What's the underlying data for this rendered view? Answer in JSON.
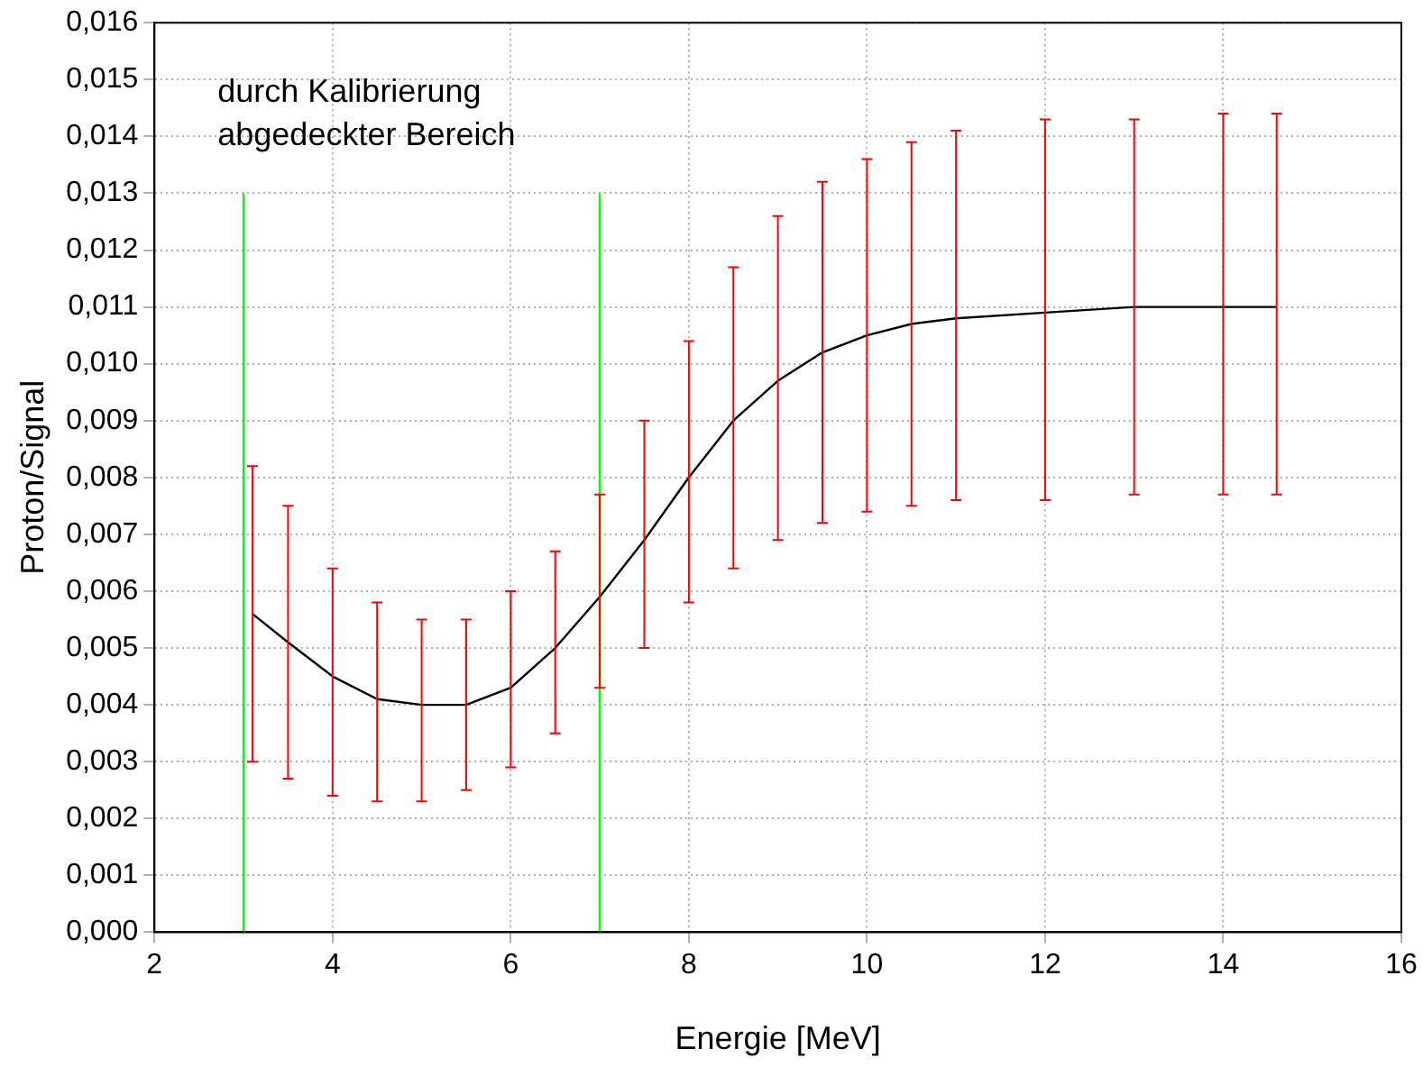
{
  "chart_data": {
    "type": "line",
    "xlabel": "Energie [MeV]",
    "ylabel": "Proton/Signal",
    "annotations": [
      "durch Kalibrierung\nabgedeckter Bereich"
    ],
    "xlim": [
      2,
      16
    ],
    "xticks": [
      2,
      4,
      6,
      8,
      10,
      12,
      14,
      16
    ],
    "ylim": [
      0,
      0.016
    ],
    "yticks": [
      {
        "value": 0,
        "label": "0,000"
      },
      {
        "value": 0.001,
        "label": "0,001"
      },
      {
        "value": 0.002,
        "label": "0,002"
      },
      {
        "value": 0.003,
        "label": "0,003"
      },
      {
        "value": 0.004,
        "label": "0,004"
      },
      {
        "value": 0.005,
        "label": "0,005"
      },
      {
        "value": 0.006,
        "label": "0,006"
      },
      {
        "value": 0.007,
        "label": "0,007"
      },
      {
        "value": 0.008,
        "label": "0,008"
      },
      {
        "value": 0.009,
        "label": "0,009"
      },
      {
        "value": 0.01,
        "label": "0,010"
      },
      {
        "value": 0.011,
        "label": "0,011"
      },
      {
        "value": 0.012,
        "label": "0,012"
      },
      {
        "value": 0.013,
        "label": "0,013"
      },
      {
        "value": 0.014,
        "label": "0,014"
      },
      {
        "value": 0.015,
        "label": "0,015"
      },
      {
        "value": 0.016,
        "label": "0,016"
      }
    ],
    "grid": true,
    "legend": false,
    "marker": "none",
    "line_style": "solid",
    "series": [
      {
        "color": "#000000",
        "x": [
          3.1,
          3.5,
          4,
          4.5,
          5,
          5.5,
          6,
          6.5,
          7,
          7.5,
          8,
          8.5,
          9,
          9.5,
          10,
          10.5,
          11,
          12,
          13,
          14,
          14.6
        ],
        "colors": [
          "#ff0000",
          "#ff0000",
          "#ff0000",
          "#ff0000",
          "#ff0000",
          "#ff0000",
          "#ff0000",
          "#ff0000",
          "#ff0000",
          "#ff0000",
          "#ff0000",
          "#ff0000",
          "#ff0000",
          "#ff0000",
          "#ff0000",
          "#ff0000",
          "#ff0000",
          "#ff0000",
          "#ff0000",
          "#ff0000",
          "#ff0000"
        ],
        "values": [
          0.0056,
          0.0051,
          0.0045,
          0.0041,
          0.004,
          0.004,
          0.0043,
          0.005,
          0.0059,
          0.0069,
          0.008,
          0.009,
          0.0097,
          0.0102,
          0.0105,
          0.0107,
          0.0108,
          0.0109,
          0.011,
          0.011,
          0.011
        ],
        "errors": [
          [
            0.003,
            0.0082
          ],
          [
            0.0027,
            0.0075
          ],
          [
            0.0024,
            0.0064
          ],
          [
            0.0023,
            0.0058
          ],
          [
            0.0023,
            0.0055
          ],
          [
            0.0025,
            0.0055
          ],
          [
            0.0029,
            0.006
          ],
          [
            0.0035,
            0.0067
          ],
          [
            0.0043,
            0.0077
          ],
          [
            0.005,
            0.009
          ],
          [
            0.0058,
            0.0104
          ],
          [
            0.0064,
            0.0117
          ],
          [
            0.0069,
            0.0126
          ],
          [
            0.0072,
            0.0132
          ],
          [
            0.0074,
            0.0136
          ],
          [
            0.0075,
            0.0139
          ],
          [
            0.0076,
            0.0141
          ],
          [
            0.0076,
            0.0143
          ],
          [
            0.0077,
            0.0143
          ],
          [
            0.0077,
            0.0144
          ],
          [
            0.0077,
            0.0144
          ]
        ]
      },
      {
        "color": "#00ff00",
        "x": [
          3,
          3
        ],
        "values": [
          0,
          0.013
        ]
      },
      {
        "color": "#00ff00",
        "x": [
          7,
          7
        ],
        "values": [
          0,
          0.013
        ]
      }
    ]
  }
}
